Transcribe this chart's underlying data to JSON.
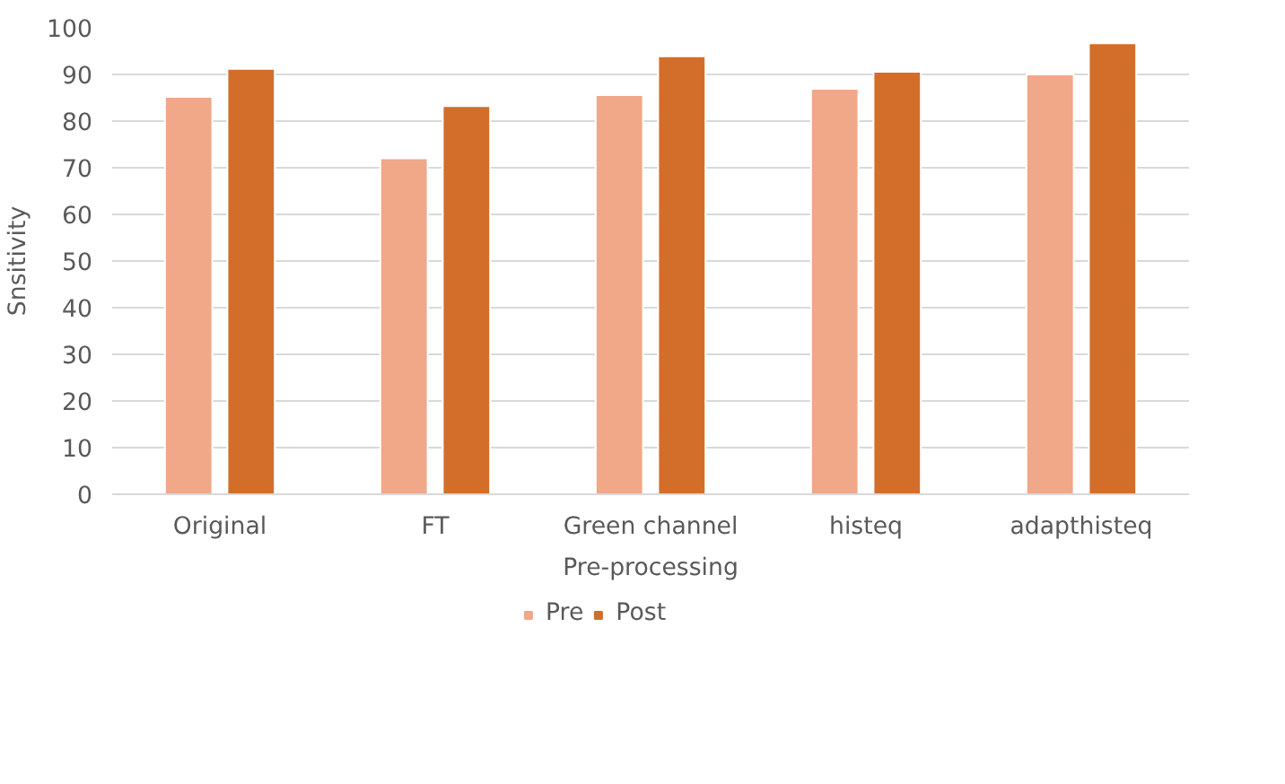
{
  "chart_data": {
    "type": "bar",
    "xlabel": "Pre-processing",
    "ylabel": "Snsitivity",
    "categories": [
      "Original",
      "FT",
      "Green channel",
      "histeq",
      "adapthisteq"
    ],
    "series": [
      {
        "name": "Pre",
        "color": "#f0a888",
        "values": [
          85.2,
          72.0,
          85.6,
          86.9,
          90.0
        ]
      },
      {
        "name": "Post",
        "color": "#d26e2a",
        "values": [
          91.2,
          83.2,
          93.9,
          90.6,
          96.7
        ]
      }
    ],
    "ylim": [
      0,
      100
    ],
    "yticks": [
      0,
      10,
      20,
      30,
      40,
      50,
      60,
      70,
      80,
      90,
      100
    ],
    "grid": "y",
    "legend": "bottom"
  }
}
